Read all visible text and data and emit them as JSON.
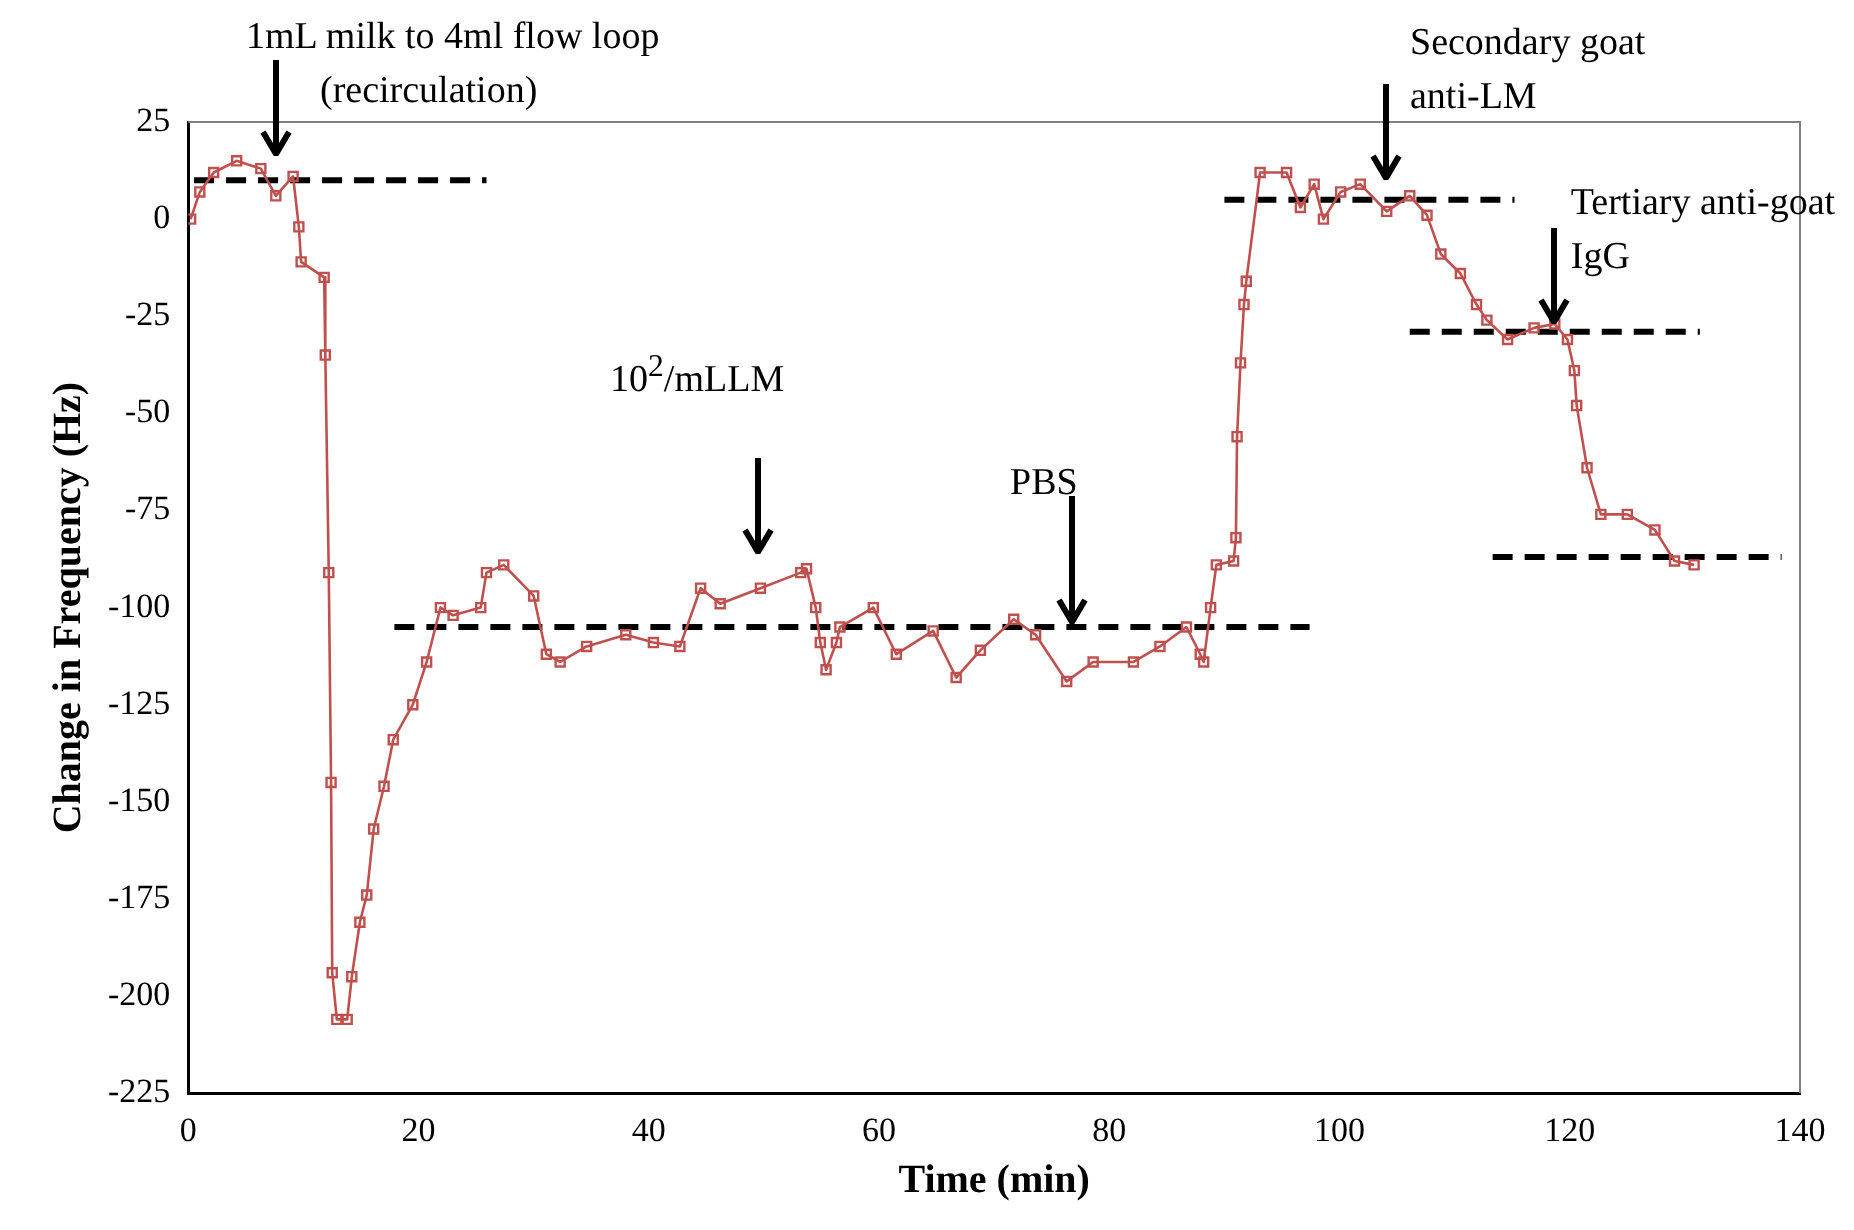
{
  "chart_data": {
    "type": "line",
    "xlabel": "Time (min)",
    "ylabel": "Change in Frequency (Hz)",
    "xlim": [
      0,
      140
    ],
    "xticks": [
      0,
      20,
      40,
      60,
      80,
      100,
      120,
      140
    ],
    "ylim": [
      -225,
      25
    ],
    "yticks": [
      25,
      0,
      -25,
      -50,
      -75,
      -100,
      -125,
      -150,
      -175,
      -200,
      -225
    ],
    "grid": false,
    "legend": false,
    "series": [
      {
        "color": "#c0504d",
        "marker": "square",
        "line_style": "solid",
        "x": [
          0.2,
          1,
          2.2,
          4.2,
          6.3,
          7.6,
          9.1,
          9.6,
          9.8,
          11.8,
          11.9,
          12.2,
          12.4,
          12.5,
          12.9,
          13.8,
          14.2,
          14.9,
          15.5,
          16.1,
          17,
          17.8,
          19.5,
          20.7,
          21.9,
          23,
          25.4,
          25.9,
          27.4,
          30,
          31.1,
          32.3,
          34.6,
          38,
          40.4,
          42.7,
          44.5,
          46.2,
          49.7,
          53.2,
          53.7,
          54.5,
          54.9,
          55.4,
          56.3,
          56.6,
          59.5,
          61.5,
          64.7,
          66.7,
          68.8,
          71.7,
          73.6,
          76.3,
          78.6,
          82.1,
          84.4,
          86.7,
          87.9,
          88.2,
          88.8,
          89.3,
          90.8,
          91,
          91.1,
          91.4,
          91.7,
          91.9,
          93.1,
          95.4,
          96.6,
          97.8,
          98.6,
          100.1,
          101.8,
          104.1,
          106.1,
          107.6,
          108.8,
          110.5,
          111.9,
          112.8,
          114.6,
          116.9,
          118.7,
          119.8,
          120.4,
          120.6,
          121.5,
          122.7,
          125,
          127.4,
          129.1,
          130.8
        ],
        "values": [
          0,
          7,
          12,
          15,
          13,
          6,
          11,
          -2,
          -11,
          -15,
          -35,
          -91,
          -145,
          -194,
          -206,
          -206,
          -195,
          -181,
          -174,
          -157,
          -146,
          -134,
          -125,
          -114,
          -100,
          -102,
          -100,
          -91,
          -89,
          -97,
          -112,
          -114,
          -110,
          -107,
          -109,
          -110,
          -95,
          -99,
          -95,
          -91,
          -90,
          -100,
          -109,
          -116,
          -109,
          -105,
          -100,
          -112,
          -106,
          -118,
          -111,
          -103,
          -107,
          -119,
          -114,
          -114,
          -110,
          -105,
          -112,
          -114,
          -100,
          -89,
          -88,
          -82,
          -56,
          -37,
          -22,
          -16,
          12,
          12,
          3,
          9,
          0,
          7,
          9,
          2,
          6,
          1,
          -9,
          -14,
          -22,
          -26,
          -31,
          -28,
          -27,
          -31,
          -39,
          -48,
          -64,
          -76,
          -76,
          -80,
          -88,
          -89
        ]
      },
      {
        "color": "#000000",
        "marker": "none",
        "line_style": "dashed",
        "x": [
          0.5,
          25.9
        ],
        "values": [
          10,
          10
        ]
      },
      {
        "color": "#000000",
        "marker": "none",
        "line_style": "dashed",
        "x": [
          17.9,
          97.4
        ],
        "values": [
          -105,
          -105
        ]
      },
      {
        "color": "#000000",
        "marker": "none",
        "line_style": "dashed",
        "x": [
          90,
          115.2
        ],
        "values": [
          5,
          5
        ]
      },
      {
        "color": "#000000",
        "marker": "none",
        "line_style": "dashed",
        "x": [
          106.1,
          131.3
        ],
        "values": [
          -29,
          -29
        ]
      },
      {
        "color": "#000000",
        "marker": "none",
        "line_style": "dashed",
        "x": [
          113.3,
          138.4
        ],
        "values": [
          -87,
          -87
        ]
      }
    ],
    "annotations": [
      "1mL milk to 4ml flow loop (recirculation)",
      "10$^{2}$/mLLM",
      "PBS",
      "Secondary goat anti-LM",
      {
        "text": "Tertiary anti-goat IgG",
        "x": 118.7,
        "y": -27
      }
    ]
  }
}
